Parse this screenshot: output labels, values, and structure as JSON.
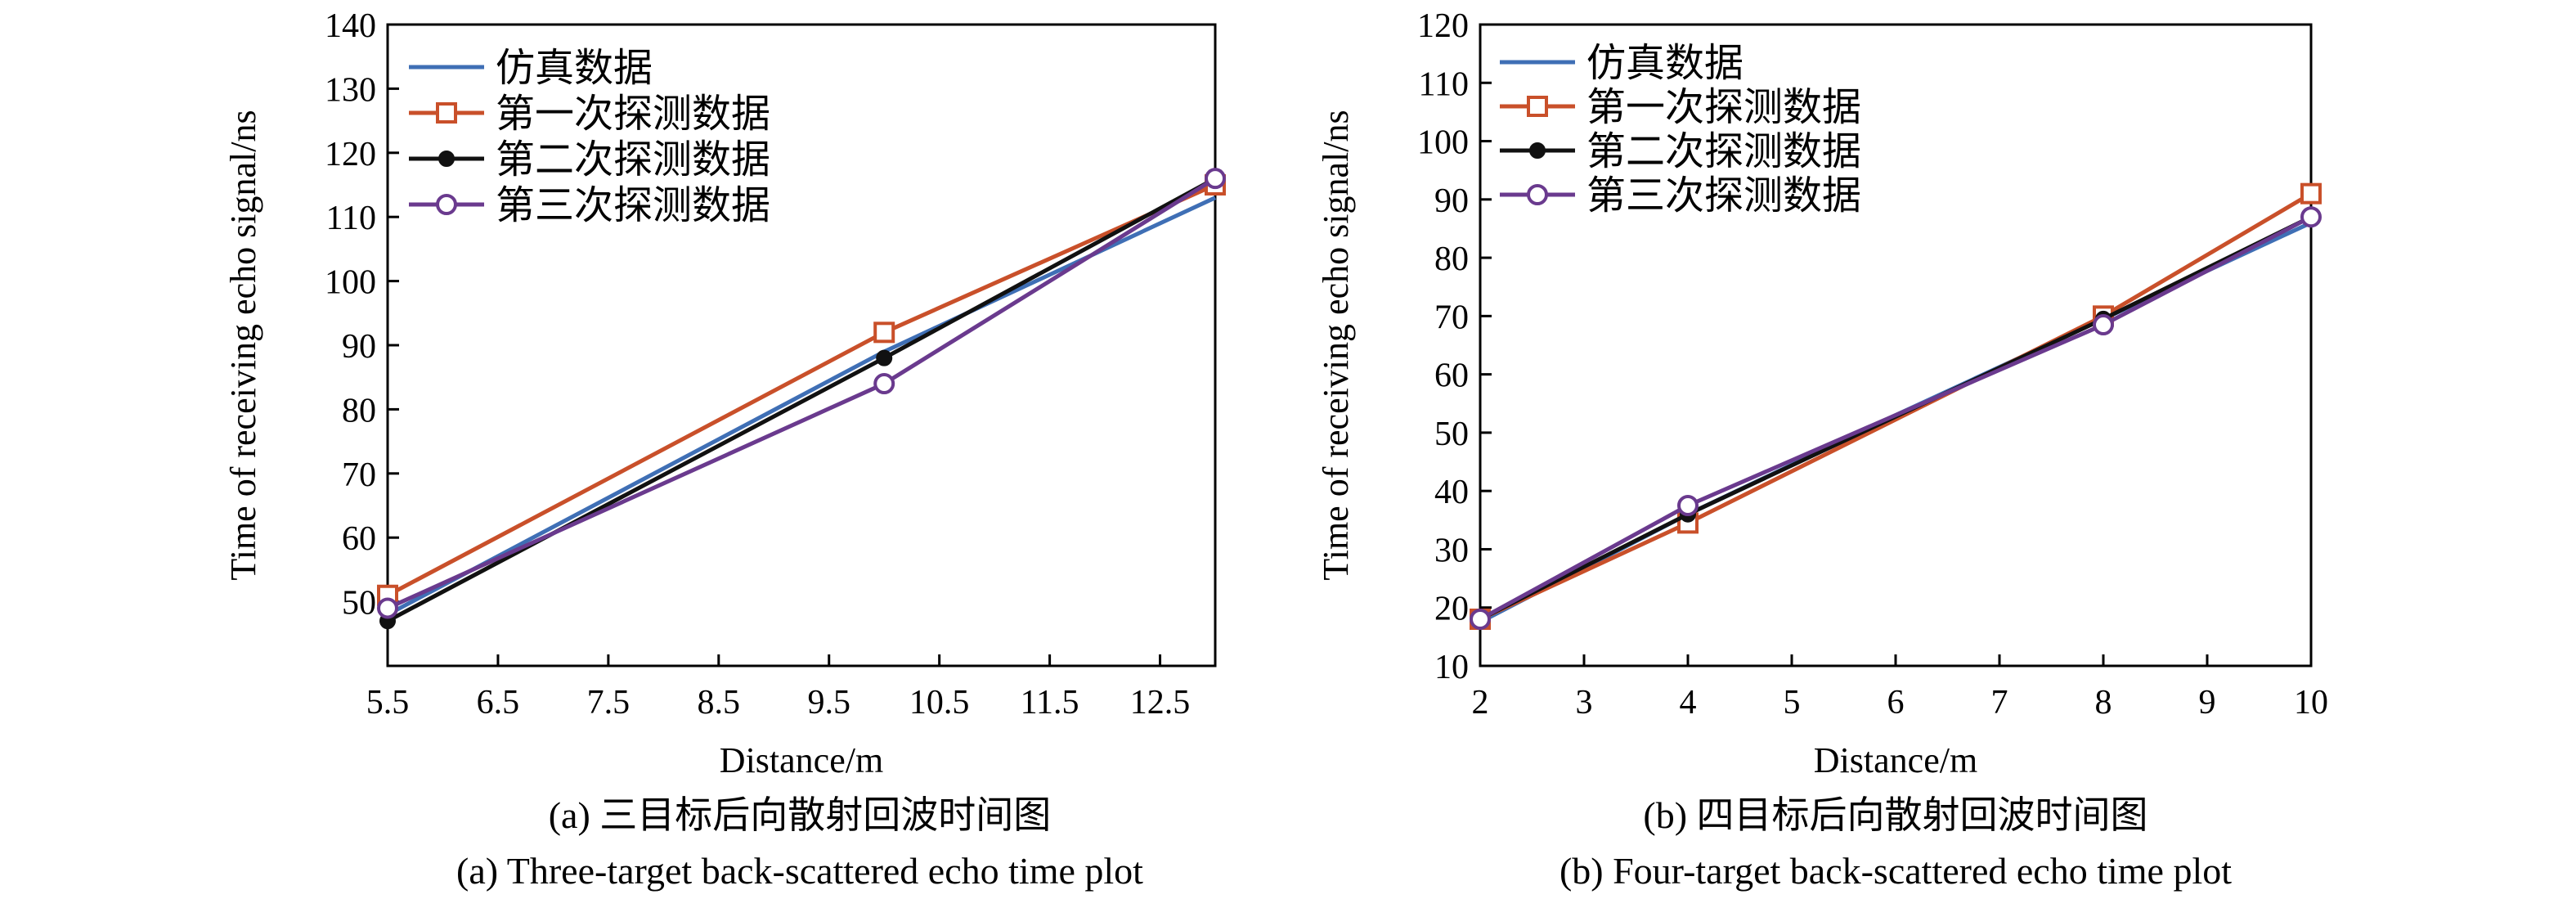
{
  "chart_data": [
    {
      "type": "line",
      "caption_cn": "(a) 三目标后向散射回波时间图",
      "caption_en": "(a) Three-target back-scattered echo time plot",
      "xlabel": "Distance/m",
      "ylabel": "Time of receiving echo signal/ns",
      "xlim": [
        5.5,
        13.0
      ],
      "ylim": [
        40,
        140
      ],
      "xticks": [
        5.5,
        6.5,
        7.5,
        8.5,
        9.5,
        10.5,
        11.5,
        12.5
      ],
      "yticks": [
        50,
        60,
        70,
        80,
        90,
        100,
        110,
        120,
        130,
        140
      ],
      "legend_position": "top-left",
      "series": [
        {
          "name": "仿真数据",
          "color": "#3f6fb5",
          "marker": "none",
          "x": [
            5.5,
            10.0,
            13.0
          ],
          "y": [
            48,
            89,
            113
          ]
        },
        {
          "name": "第一次探测数据",
          "color": "#c9502a",
          "marker": "square",
          "x": [
            5.5,
            10.0,
            13.0
          ],
          "y": [
            51,
            92,
            115
          ]
        },
        {
          "name": "第二次探测数据",
          "color": "#111111",
          "marker": "dot",
          "x": [
            5.5,
            10.0,
            13.0
          ],
          "y": [
            47,
            88,
            116
          ]
        },
        {
          "name": "第三次探测数据",
          "color": "#6a3a8e",
          "marker": "circle",
          "x": [
            5.5,
            10.0,
            13.0
          ],
          "y": [
            49,
            84,
            116
          ]
        }
      ]
    },
    {
      "type": "line",
      "caption_cn": "(b) 四目标后向散射回波时间图",
      "caption_en": "(b) Four-target back-scattered echo time plot",
      "xlabel": "Distance/m",
      "ylabel": "Time of receiving echo signal/ns",
      "xlim": [
        2,
        10
      ],
      "ylim": [
        10,
        120
      ],
      "xticks": [
        2,
        3,
        4,
        5,
        6,
        7,
        8,
        9,
        10
      ],
      "yticks": [
        10,
        20,
        30,
        40,
        50,
        60,
        70,
        80,
        90,
        100,
        110,
        120
      ],
      "legend_position": "top-left",
      "series": [
        {
          "name": "仿真数据",
          "color": "#3f6fb5",
          "marker": "none",
          "x": [
            2,
            4,
            6,
            8,
            10
          ],
          "y": [
            17.5,
            36,
            53,
            69.5,
            86
          ]
        },
        {
          "name": "第一次探测数据",
          "color": "#c9502a",
          "marker": "square",
          "x": [
            2,
            4,
            8,
            10
          ],
          "y": [
            18,
            34.5,
            70,
            91
          ]
        },
        {
          "name": "第二次探测数据",
          "color": "#111111",
          "marker": "dot",
          "x": [
            2,
            4,
            8,
            10
          ],
          "y": [
            18,
            36,
            69.5,
            87
          ]
        },
        {
          "name": "第三次探测数据",
          "color": "#6a3a8e",
          "marker": "circle",
          "x": [
            2,
            4,
            8,
            10
          ],
          "y": [
            18,
            37.5,
            68.5,
            87
          ]
        }
      ]
    }
  ]
}
